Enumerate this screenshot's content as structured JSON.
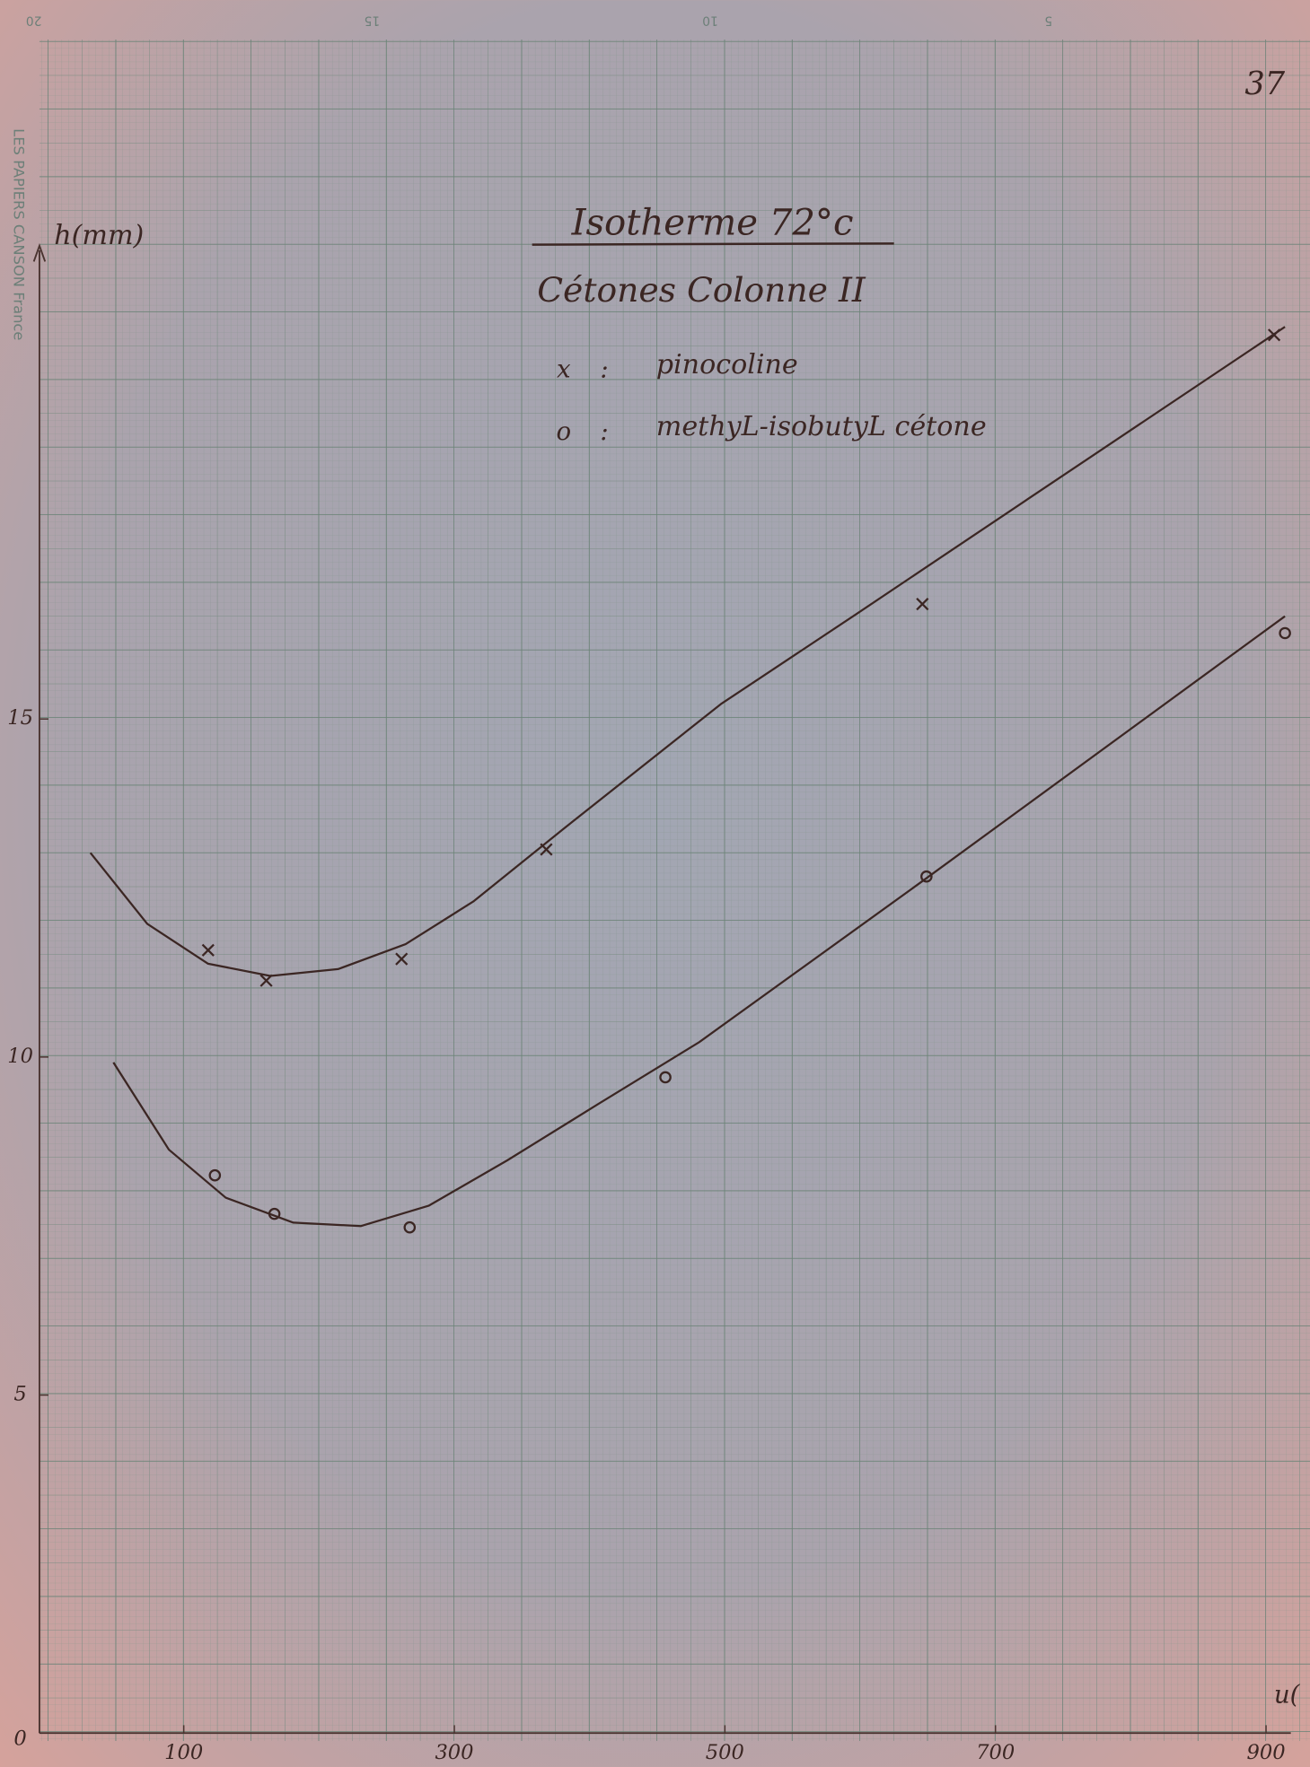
{
  "chart_data": {
    "type": "scatter",
    "page_number": "37",
    "title": "Isotherme 72°c",
    "subtitle": "Cétones Colonne II",
    "ylabel": "h(mm)",
    "xlabel": "u(",
    "paper_brand": "LES PAPIERS CANSON France",
    "paper_scale": [
      20,
      15,
      10,
      5
    ],
    "xlim": [
      0,
      930
    ],
    "ylim": [
      0,
      25
    ],
    "xticks": [
      100,
      300,
      500,
      700,
      900
    ],
    "yticks": [
      0,
      5,
      10,
      15
    ],
    "series": [
      {
        "name": "pinocoline",
        "marker": "x",
        "color": "#3b2623",
        "x": [
          118,
          161,
          261,
          368,
          646,
          906
        ],
        "values": [
          11.58,
          11.13,
          11.45,
          13.07,
          16.7,
          20.68
        ],
        "curve_x": [
          31,
          73,
          118,
          164,
          214,
          264,
          314,
          381,
          497,
          597,
          714,
          914
        ],
        "curve_values": [
          13.02,
          11.97,
          11.38,
          11.2,
          11.3,
          11.67,
          12.3,
          13.38,
          15.22,
          16.55,
          18.12,
          20.8
        ]
      },
      {
        "name": "methyL-isobutyL cétone",
        "marker": "o",
        "color": "#3b2623",
        "x": [
          123,
          167,
          267,
          456,
          649,
          914
        ],
        "values": [
          8.25,
          7.68,
          7.48,
          9.7,
          12.67,
          16.27
        ],
        "curve_x": [
          48,
          89,
          131,
          181,
          231,
          281,
          339,
          406,
          481,
          648,
          914
        ],
        "curve_values": [
          9.92,
          8.63,
          7.92,
          7.55,
          7.5,
          7.8,
          8.47,
          9.3,
          10.22,
          12.63,
          16.52
        ]
      }
    ]
  }
}
